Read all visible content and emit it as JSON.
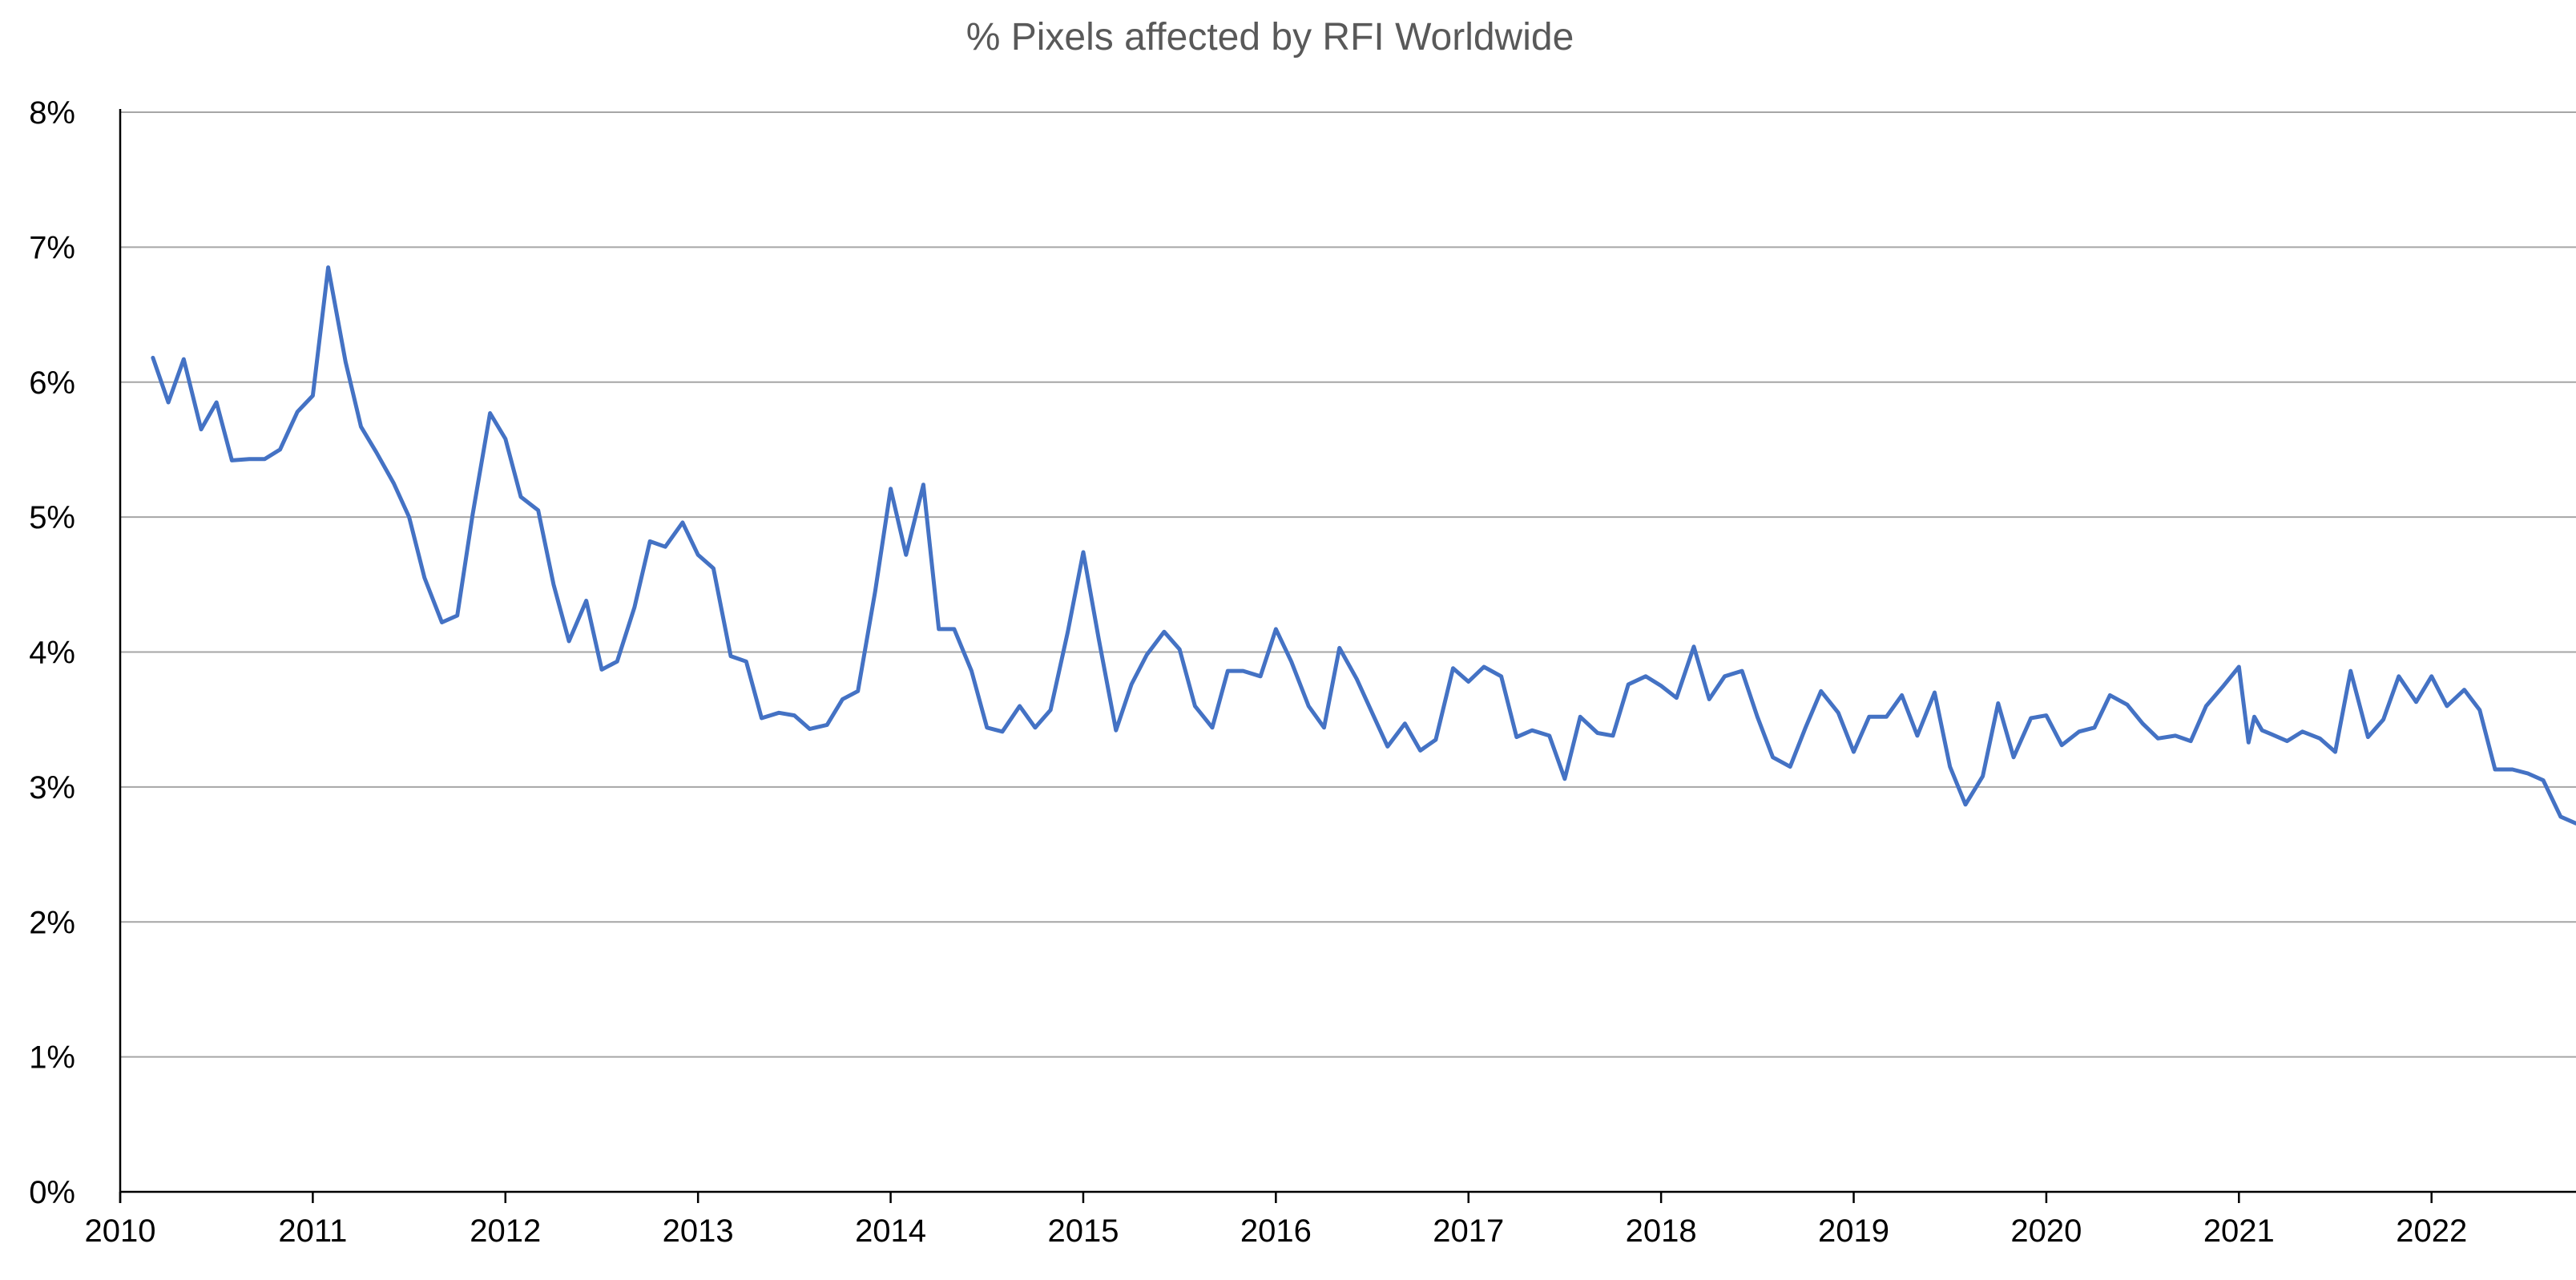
{
  "chart_data": {
    "type": "line",
    "title": "% Pixels affected by RFI Worldwide",
    "xlabel": "",
    "ylabel": "",
    "xlim": [
      2010,
      2022.75
    ],
    "ylim": [
      0,
      8
    ],
    "grid": true,
    "legend": "none",
    "x_ticks": [
      2010,
      2011,
      2012,
      2013,
      2014,
      2015,
      2016,
      2017,
      2018,
      2019,
      2020,
      2021,
      2022
    ],
    "x_tick_labels": [
      "2010",
      "2011",
      "2012",
      "2013",
      "2014",
      "2015",
      "2016",
      "2017",
      "2018",
      "2019",
      "2020",
      "2021",
      "2022"
    ],
    "y_ticks": [
      0,
      1,
      2,
      3,
      4,
      5,
      6,
      7,
      8
    ],
    "y_tick_labels": [
      "0%",
      "1%",
      "2%",
      "3%",
      "4%",
      "5%",
      "6%",
      "7%",
      "8%"
    ],
    "series": [
      {
        "name": "% Pixels affected by RFI",
        "color": "#4472c4",
        "x": [
          2010.17,
          2010.25,
          2010.33,
          2010.42,
          2010.5,
          2010.58,
          2010.67,
          2010.75,
          2010.83,
          2010.92,
          2011.0,
          2011.08,
          2011.17,
          2011.25,
          2011.33,
          2011.42,
          2011.5,
          2011.58,
          2011.67,
          2011.75,
          2011.83,
          2011.92,
          2012.0,
          2012.08,
          2012.17,
          2012.25,
          2012.33,
          2012.42,
          2012.5,
          2012.58,
          2012.67,
          2012.75,
          2012.83,
          2012.92,
          2013.0,
          2013.08,
          2013.17,
          2013.25,
          2013.33,
          2013.42,
          2013.5,
          2013.58,
          2013.67,
          2013.75,
          2013.83,
          2013.92,
          2014.0,
          2014.08,
          2014.17,
          2014.25,
          2014.33,
          2014.42,
          2014.5,
          2014.58,
          2014.67,
          2014.75,
          2014.83,
          2014.92,
          2015.0,
          2015.08,
          2015.17,
          2015.25,
          2015.33,
          2015.42,
          2015.5,
          2015.58,
          2015.67,
          2015.75,
          2015.83,
          2015.92,
          2016.0,
          2016.08,
          2016.17,
          2016.25,
          2016.33,
          2016.42,
          2016.5,
          2016.58,
          2016.67,
          2016.75,
          2016.83,
          2016.92,
          2017.0,
          2017.08,
          2017.17,
          2017.25,
          2017.33,
          2017.42,
          2017.5,
          2017.58,
          2017.67,
          2017.75,
          2017.83,
          2017.92,
          2018.0,
          2018.08,
          2018.17,
          2018.25,
          2018.33,
          2018.42,
          2018.5,
          2018.58,
          2018.67,
          2018.75,
          2018.83,
          2018.92,
          2019.0,
          2019.08,
          2019.17,
          2019.25,
          2019.33,
          2019.42,
          2019.5,
          2019.58,
          2019.67,
          2019.75,
          2019.83,
          2019.92,
          2020.0,
          2020.08,
          2020.17,
          2020.25,
          2020.33,
          2020.42,
          2020.5,
          2020.58,
          2020.67,
          2020.75,
          2020.83,
          2020.92,
          2021.0,
          2021.05,
          2021.08,
          2021.12,
          2021.17,
          2021.25,
          2021.33,
          2021.42,
          2021.5,
          2021.58,
          2021.67,
          2021.75,
          2021.83,
          2021.92,
          2022.0,
          2022.08,
          2022.17,
          2022.25,
          2022.33,
          2022.42,
          2022.5,
          2022.58,
          2022.67,
          2022.75
        ],
        "y": [
          6.18,
          5.85,
          6.17,
          5.65,
          5.85,
          5.42,
          5.43,
          5.43,
          5.5,
          5.78,
          5.9,
          6.85,
          6.15,
          5.67,
          5.48,
          5.25,
          5.0,
          4.55,
          4.22,
          4.27,
          5.02,
          5.77,
          5.58,
          5.15,
          5.05,
          4.5,
          4.08,
          4.38,
          3.87,
          3.93,
          4.33,
          4.82,
          4.78,
          4.96,
          4.72,
          4.62,
          3.97,
          3.93,
          3.51,
          3.55,
          3.53,
          3.43,
          3.46,
          3.65,
          3.71,
          4.45,
          5.21,
          4.72,
          5.24,
          4.17,
          4.17,
          3.86,
          3.44,
          3.41,
          3.6,
          3.44,
          3.57,
          4.15,
          4.74,
          4.1,
          3.42,
          3.76,
          3.98,
          4.15,
          4.02,
          3.6,
          3.44,
          3.86,
          3.86,
          3.82,
          4.17,
          3.93,
          3.6,
          3.44,
          4.03,
          3.8,
          3.55,
          3.3,
          3.47,
          3.27,
          3.35,
          3.88,
          3.78,
          3.89,
          3.82,
          3.37,
          3.42,
          3.38,
          3.06,
          3.52,
          3.4,
          3.38,
          3.76,
          3.82,
          3.75,
          3.66,
          4.04,
          3.65,
          3.82,
          3.86,
          3.52,
          3.22,
          3.15,
          3.44,
          3.71,
          3.55,
          3.26,
          3.52,
          3.52,
          3.68,
          3.38,
          3.7,
          3.15,
          2.87,
          3.08,
          3.62,
          3.22,
          3.51,
          3.53,
          3.31,
          3.41,
          3.44,
          3.68,
          3.61,
          3.47,
          3.36,
          3.38,
          3.34,
          3.6,
          3.75,
          3.89,
          3.33,
          3.52,
          3.42,
          3.39,
          3.34,
          3.41,
          3.36,
          3.26,
          3.86,
          3.37,
          3.5,
          3.82,
          3.63,
          3.82,
          3.6,
          3.72,
          3.57,
          3.13,
          3.13,
          3.1,
          3.05,
          2.78,
          2.73
        ]
      }
    ]
  }
}
